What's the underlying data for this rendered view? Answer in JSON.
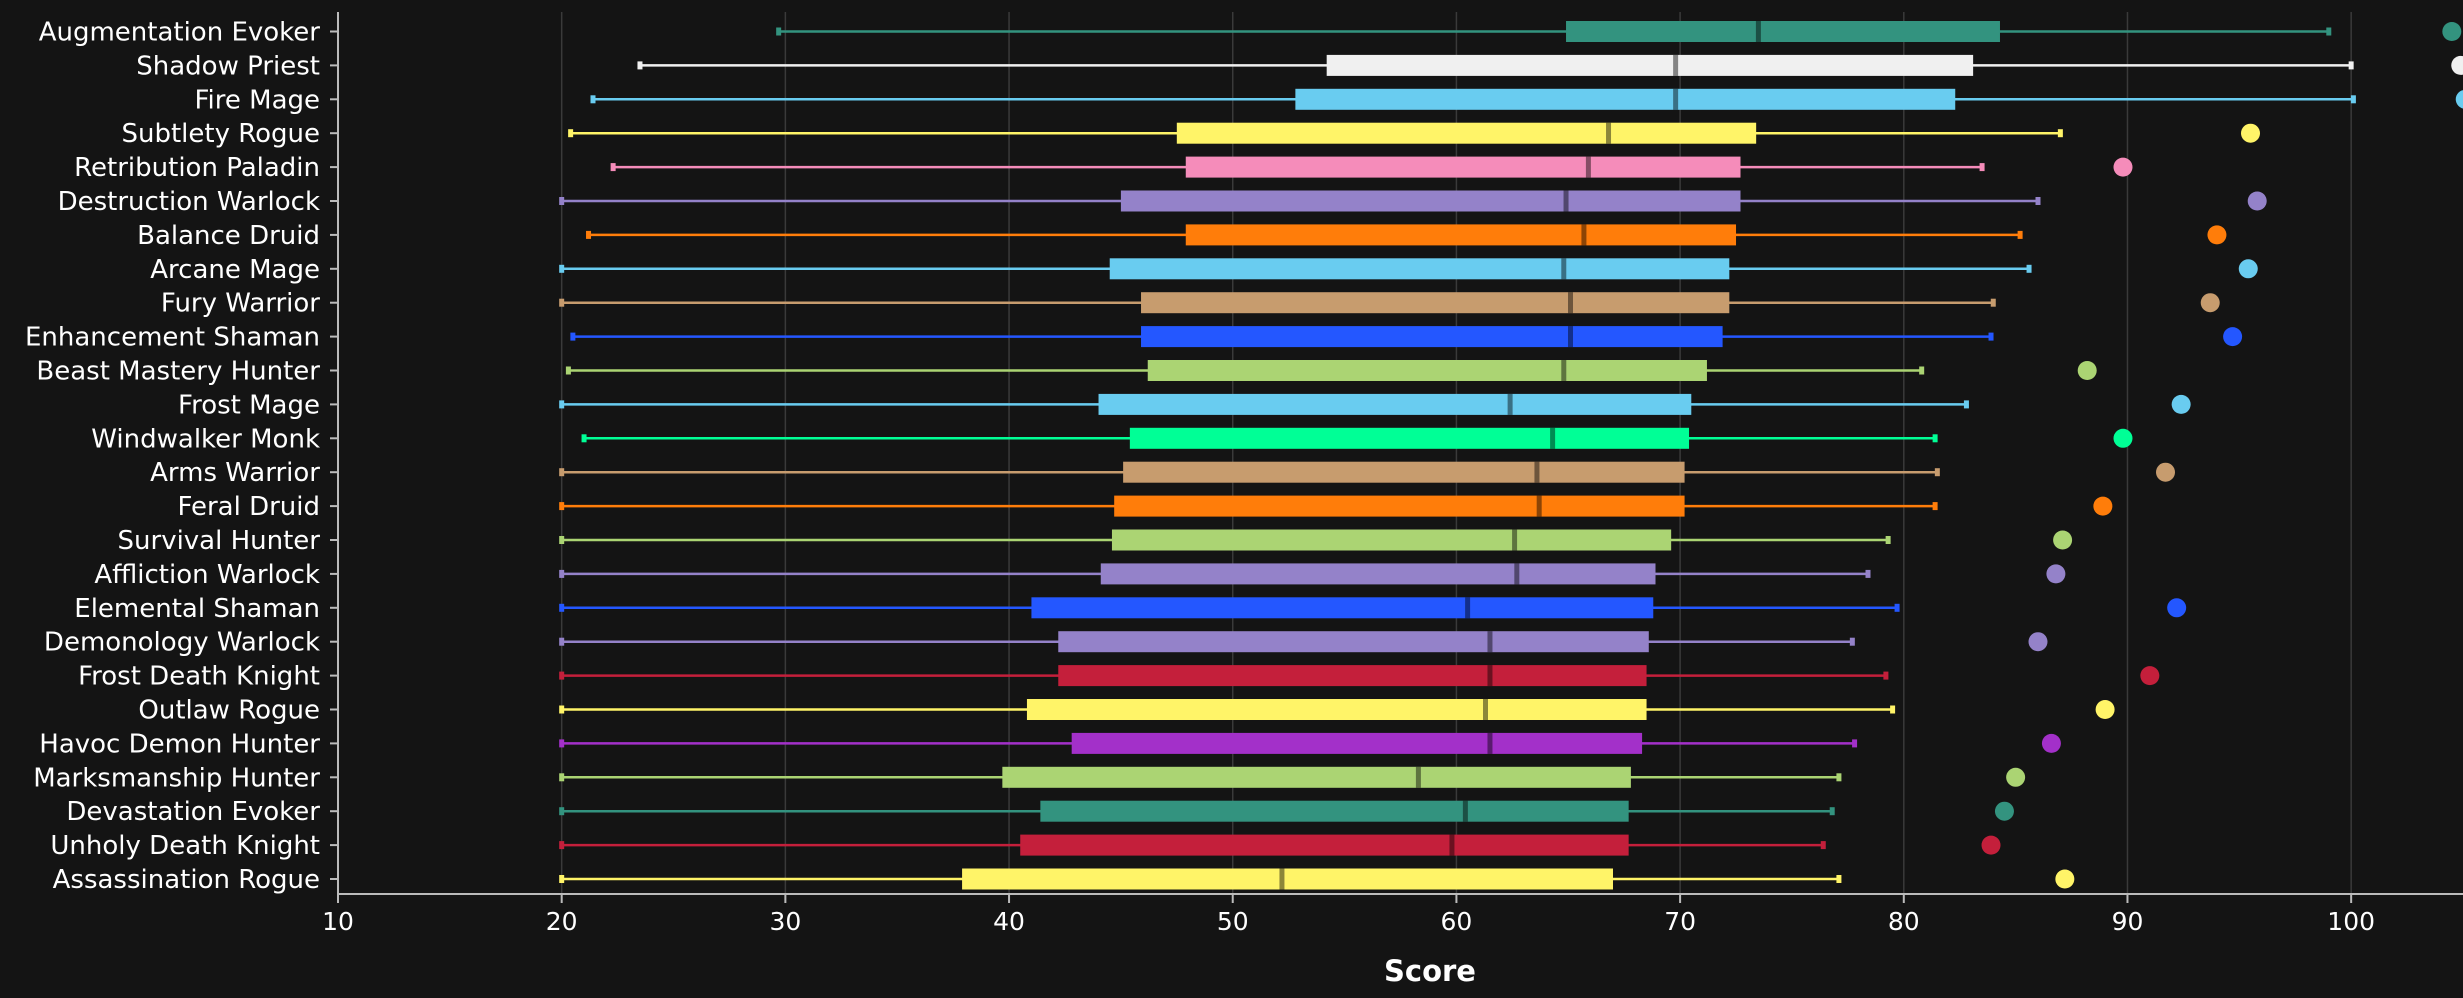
{
  "chart_data": {
    "type": "box",
    "orientation": "horizontal",
    "xlabel": "Score",
    "xlim": [
      10,
      105
    ],
    "xticks": [
      10,
      20,
      30,
      40,
      50,
      60,
      70,
      80,
      90,
      100
    ],
    "grid": true,
    "colors": {
      "background": "#141414",
      "grid": "#3a3a3a",
      "text": "#ffffff"
    },
    "series": [
      {
        "category": "Augmentation Evoker",
        "color": "#33937F",
        "min": 29.7,
        "q1": 64.9,
        "median": 73.5,
        "q3": 84.3,
        "max": 99.0,
        "outlier": 104.5
      },
      {
        "category": "Shadow Priest",
        "color": "#F0F0F0",
        "min": 23.5,
        "q1": 54.2,
        "median": 69.8,
        "q3": 83.1,
        "max": 100.0,
        "outlier": 104.9
      },
      {
        "category": "Fire Mage",
        "color": "#69CCF0",
        "min": 21.4,
        "q1": 52.8,
        "median": 69.8,
        "q3": 82.3,
        "max": 100.1,
        "outlier": 105.1
      },
      {
        "category": "Subtlety Rogue",
        "color": "#FFF468",
        "min": 20.4,
        "q1": 47.5,
        "median": 66.8,
        "q3": 73.4,
        "max": 87.0,
        "outlier": 95.5
      },
      {
        "category": "Retribution Paladin",
        "color": "#F58CBA",
        "min": 22.3,
        "q1": 47.9,
        "median": 65.9,
        "q3": 72.7,
        "max": 83.5,
        "outlier": 89.8
      },
      {
        "category": "Destruction Warlock",
        "color": "#9482C9",
        "min": 20.0,
        "q1": 45.0,
        "median": 64.9,
        "q3": 72.7,
        "max": 86.0,
        "outlier": 95.8
      },
      {
        "category": "Balance Druid",
        "color": "#FF7D0A",
        "min": 21.2,
        "q1": 47.9,
        "median": 65.7,
        "q3": 72.5,
        "max": 85.2,
        "outlier": 94.0
      },
      {
        "category": "Arcane Mage",
        "color": "#69CCF0",
        "min": 20.0,
        "q1": 44.5,
        "median": 64.8,
        "q3": 72.2,
        "max": 85.6,
        "outlier": 95.4
      },
      {
        "category": "Fury Warrior",
        "color": "#C79C6E",
        "min": 20.0,
        "q1": 45.9,
        "median": 65.1,
        "q3": 72.2,
        "max": 84.0,
        "outlier": 93.7
      },
      {
        "category": "Enhancement Shaman",
        "color": "#2457FF",
        "min": 20.5,
        "q1": 45.9,
        "median": 65.1,
        "q3": 71.9,
        "max": 83.9,
        "outlier": 94.7
      },
      {
        "category": "Beast Mastery Hunter",
        "color": "#ABD473",
        "min": 20.3,
        "q1": 46.2,
        "median": 64.8,
        "q3": 71.2,
        "max": 80.8,
        "outlier": 88.2
      },
      {
        "category": "Frost Mage",
        "color": "#69CCF0",
        "min": 20.0,
        "q1": 44.0,
        "median": 62.4,
        "q3": 70.5,
        "max": 82.8,
        "outlier": 92.4
      },
      {
        "category": "Windwalker Monk",
        "color": "#00FF96",
        "min": 21.0,
        "q1": 45.4,
        "median": 64.3,
        "q3": 70.4,
        "max": 81.4,
        "outlier": 89.8
      },
      {
        "category": "Arms Warrior",
        "color": "#C79C6E",
        "min": 20.0,
        "q1": 45.1,
        "median": 63.6,
        "q3": 70.2,
        "max": 81.5,
        "outlier": 91.7
      },
      {
        "category": "Feral Druid",
        "color": "#FF7D0A",
        "min": 20.0,
        "q1": 44.7,
        "median": 63.7,
        "q3": 70.2,
        "max": 81.4,
        "outlier": 88.9
      },
      {
        "category": "Survival Hunter",
        "color": "#ABD473",
        "min": 20.0,
        "q1": 44.6,
        "median": 62.6,
        "q3": 69.6,
        "max": 79.3,
        "outlier": 87.1
      },
      {
        "category": "Affliction Warlock",
        "color": "#9482C9",
        "min": 20.0,
        "q1": 44.1,
        "median": 62.7,
        "q3": 68.9,
        "max": 78.4,
        "outlier": 86.8
      },
      {
        "category": "Elemental Shaman",
        "color": "#2457FF",
        "min": 20.0,
        "q1": 41.0,
        "median": 60.5,
        "q3": 68.8,
        "max": 79.7,
        "outlier": 92.2
      },
      {
        "category": "Demonology Warlock",
        "color": "#9482C9",
        "min": 20.0,
        "q1": 42.2,
        "median": 61.5,
        "q3": 68.6,
        "max": 77.7,
        "outlier": 86.0
      },
      {
        "category": "Frost Death Knight",
        "color": "#C41F3B",
        "min": 20.0,
        "q1": 42.2,
        "median": 61.5,
        "q3": 68.5,
        "max": 79.2,
        "outlier": 91.0
      },
      {
        "category": "Outlaw Rogue",
        "color": "#FFF468",
        "min": 20.0,
        "q1": 40.8,
        "median": 61.3,
        "q3": 68.5,
        "max": 79.5,
        "outlier": 89.0
      },
      {
        "category": "Havoc Demon Hunter",
        "color": "#A330C9",
        "min": 20.0,
        "q1": 42.8,
        "median": 61.5,
        "q3": 68.3,
        "max": 77.8,
        "outlier": 86.6
      },
      {
        "category": "Marksmanship Hunter",
        "color": "#ABD473",
        "min": 20.0,
        "q1": 39.7,
        "median": 58.3,
        "q3": 67.8,
        "max": 77.1,
        "outlier": 85.0
      },
      {
        "category": "Devastation Evoker",
        "color": "#33937F",
        "min": 20.0,
        "q1": 41.4,
        "median": 60.4,
        "q3": 67.7,
        "max": 76.8,
        "outlier": 84.5
      },
      {
        "category": "Unholy Death Knight",
        "color": "#C41F3B",
        "min": 20.0,
        "q1": 40.5,
        "median": 59.8,
        "q3": 67.7,
        "max": 76.4,
        "outlier": 83.9
      },
      {
        "category": "Assassination Rogue",
        "color": "#FFF468",
        "min": 20.0,
        "q1": 37.9,
        "median": 52.2,
        "q3": 67.0,
        "max": 77.1,
        "outlier": 87.2
      }
    ]
  }
}
